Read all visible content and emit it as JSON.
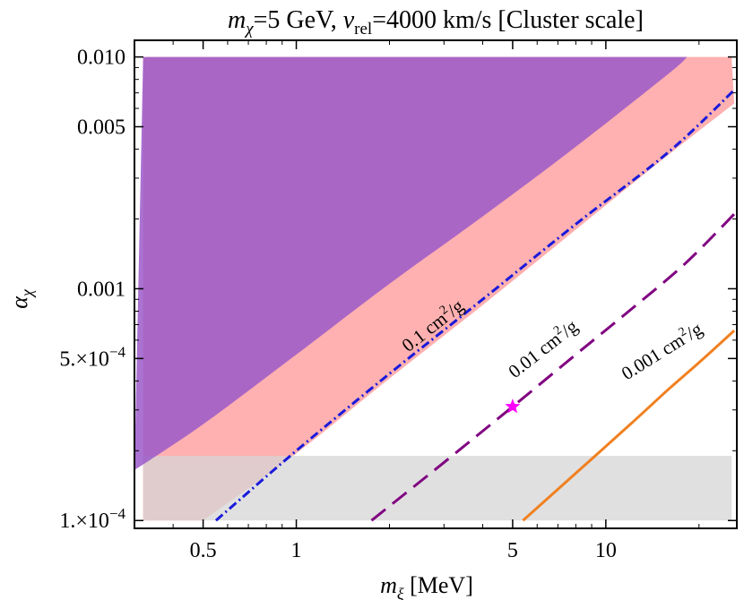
{
  "chart_data": {
    "type": "line",
    "title": {
      "mass_symbol": "m",
      "mass_subscript": "χ",
      "mass_value": "=5 GeV, ",
      "vel_symbol": "v",
      "vel_subscript": "rel",
      "vel_value": "=4000 km/s [Cluster scale]"
    },
    "xlabel": {
      "symbol": "m",
      "subscript": "ξ",
      "unit": " [MeV]"
    },
    "ylabel": {
      "symbol": "α",
      "subscript": "χ"
    },
    "x_scale": "log",
    "y_scale": "log",
    "xlim": [
      0.3,
      26.5
    ],
    "ylim": [
      9.25e-05,
      0.0118
    ],
    "x_ticks": [
      {
        "value": 0.5,
        "label": "0.5"
      },
      {
        "value": 1,
        "label": "1"
      },
      {
        "value": 5,
        "label": "5"
      },
      {
        "value": 10,
        "label": "10"
      }
    ],
    "y_ticks": [
      {
        "value": 0.01,
        "label": "0.010"
      },
      {
        "value": 0.005,
        "label": "0.005"
      },
      {
        "value": 0.001,
        "label": "0.001"
      },
      {
        "value": 0.0005,
        "label": "5.×10",
        "exp": "−4"
      },
      {
        "value": 0.0001,
        "label": "1.×10",
        "exp": "−4"
      }
    ],
    "colors": {
      "purple_region": "#9b59c9",
      "pink_region": "#ffb0b0",
      "gray_region": "#d6d6d6",
      "line_01": "#1a1adb",
      "line_001": "#800080",
      "line_0001": "#f08020",
      "star": "#ff00ff"
    },
    "regions": [
      {
        "name": "purple excluded region",
        "color": "#9b59c9",
        "boundary": [
          [
            0.3,
            0.000165
          ],
          [
            0.5,
            0.00026
          ],
          [
            1,
            0.00052
          ],
          [
            2,
            0.00105
          ],
          [
            4,
            0.00205
          ],
          [
            8,
            0.0041
          ],
          [
            16,
            0.0085
          ],
          [
            18.3,
            0.01
          ]
        ]
      },
      {
        "name": "pink band",
        "color": "#ffb0b0",
        "lower_boundary": [
          [
            0.5,
            0.0001
          ],
          [
            1,
            0.000195
          ],
          [
            2,
            0.00041
          ],
          [
            4,
            0.00085
          ],
          [
            8,
            0.0018
          ],
          [
            16,
            0.0038
          ],
          [
            26,
            0.0063
          ]
        ]
      },
      {
        "name": "gray band",
        "color": "#d6d6d6",
        "ylim": [
          0.0001,
          0.00019
        ]
      }
    ],
    "series": [
      {
        "style": "dash-dot",
        "color": "#1a1adb",
        "x": [
          0.55,
          1,
          2,
          4,
          8,
          16,
          26
        ],
        "y": [
          0.0001,
          0.0002,
          0.00043,
          0.0009,
          0.0019,
          0.0039,
          0.0072
        ]
      },
      {
        "style": "dashed",
        "color": "#800080",
        "x": [
          1.75,
          3,
          5,
          8,
          12,
          18,
          26
        ],
        "y": [
          0.0001,
          0.000178,
          0.00031,
          0.00052,
          0.00081,
          0.00128,
          0.0021
        ]
      },
      {
        "style": "solid",
        "color": "#f08020",
        "x": [
          5.4,
          8,
          12,
          16,
          20,
          26
        ],
        "y": [
          0.0001,
          0.00016,
          0.00026,
          0.00037,
          0.00048,
          0.00066
        ]
      }
    ],
    "annotations": [
      {
        "text": "0.1 cm",
        "sup": "2",
        "tail": "/g"
      },
      {
        "text": "0.01 cm",
        "sup": "2",
        "tail": "/g"
      },
      {
        "text": "0.001 cm",
        "sup": "2",
        "tail": "/g"
      }
    ],
    "marker": {
      "shape": "star",
      "color": "#ff00ff",
      "x": 5,
      "y": 0.00031
    },
    "grid": false,
    "legend": "none"
  }
}
